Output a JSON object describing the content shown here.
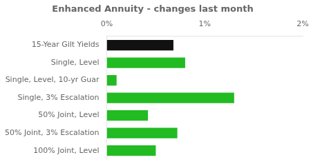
{
  "chart_data": {
    "type": "bar",
    "orientation": "horizontal",
    "title": "Enhanced Annuity - changes last month",
    "categories": [
      "100% Joint, Level",
      "50% Joint, 3% Escalation",
      "50% Joint, Level",
      "Single, 3% Escalation",
      "Single, Level, 10-yr Guar",
      "Single, Level",
      "15-Year Gilt Yields"
    ],
    "values": [
      0.5,
      0.72,
      0.42,
      1.3,
      0.1,
      0.8,
      0.68
    ],
    "colors": [
      "#22bb22",
      "#22bb22",
      "#22bb22",
      "#22bb22",
      "#22bb22",
      "#22bb22",
      "#111111"
    ],
    "xlim": [
      0,
      2.0
    ],
    "xticks": [
      {
        "value": 0.0,
        "label": "0%"
      },
      {
        "value": 1.0,
        "label": "1%"
      },
      {
        "value": 2.0,
        "label": "2%"
      }
    ],
    "grid": false
  }
}
